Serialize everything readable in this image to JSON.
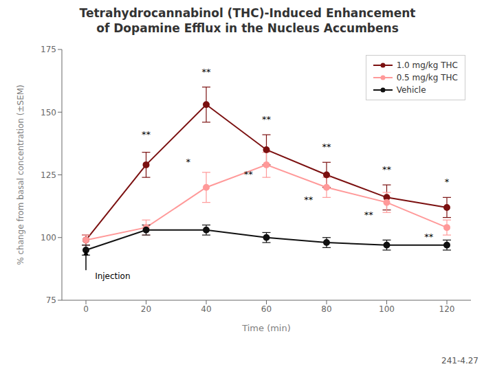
{
  "chart_data": {
    "type": "line",
    "title": "Tetrahydrocannabinol (THC)-Induced Enhancement",
    "subtitle": "of Dopamine Efflux in the Nucleus Accumbens",
    "caption": "241-4.27",
    "x_label": "Time (min)",
    "y_label": "% change from basal concentration (±SEM)",
    "x": [
      0,
      20,
      40,
      60,
      80,
      100,
      120
    ],
    "series": [
      {
        "name": "1.0 mg/kg THC",
        "color": "#7B1010",
        "marker": "circle",
        "values": [
          99,
          129,
          153,
          135,
          125,
          116,
          112
        ],
        "errors": [
          2,
          5,
          7,
          6,
          5,
          5,
          4
        ]
      },
      {
        "name": "0.5 mg/kg THC",
        "color": "#FF9999",
        "marker": "circle",
        "values": [
          99,
          104,
          120,
          129,
          120,
          114,
          104
        ],
        "errors": [
          2,
          3,
          6,
          5,
          4,
          4,
          3
        ]
      },
      {
        "name": "Vehicle",
        "color": "#111111",
        "marker": "circle",
        "values": [
          95,
          103,
          103,
          100,
          98,
          97,
          97
        ],
        "errors": [
          2,
          2,
          2,
          2,
          2,
          2,
          2
        ]
      }
    ],
    "xlim": [
      -8,
      128
    ],
    "xticks": [
      0,
      20,
      40,
      60,
      80,
      100,
      120
    ],
    "ylim": [
      75,
      175
    ],
    "yticks": [
      75,
      100,
      125,
      150,
      175
    ],
    "grid": false,
    "legend": "upper right",
    "annotations": [
      {
        "text": "Injection",
        "x": 3,
        "y": 86,
        "arrow": {
          "x": 0,
          "from": 87,
          "to": 95
        }
      },
      {
        "text": "**",
        "x": 20,
        "y": 140
      },
      {
        "text": "**",
        "x": 40,
        "y": 165
      },
      {
        "text": "**",
        "x": 60,
        "y": 146
      },
      {
        "text": "**",
        "x": 80,
        "y": 135
      },
      {
        "text": "**",
        "x": 100,
        "y": 126
      },
      {
        "text": "*",
        "x": 120,
        "y": 121
      },
      {
        "text": "*",
        "x": 34,
        "y": 129
      },
      {
        "text": "**",
        "x": 54,
        "y": 124
      },
      {
        "text": "**",
        "x": 74,
        "y": 114
      },
      {
        "text": "**",
        "x": 94,
        "y": 108
      },
      {
        "text": "**",
        "x": 114,
        "y": 99
      }
    ]
  }
}
